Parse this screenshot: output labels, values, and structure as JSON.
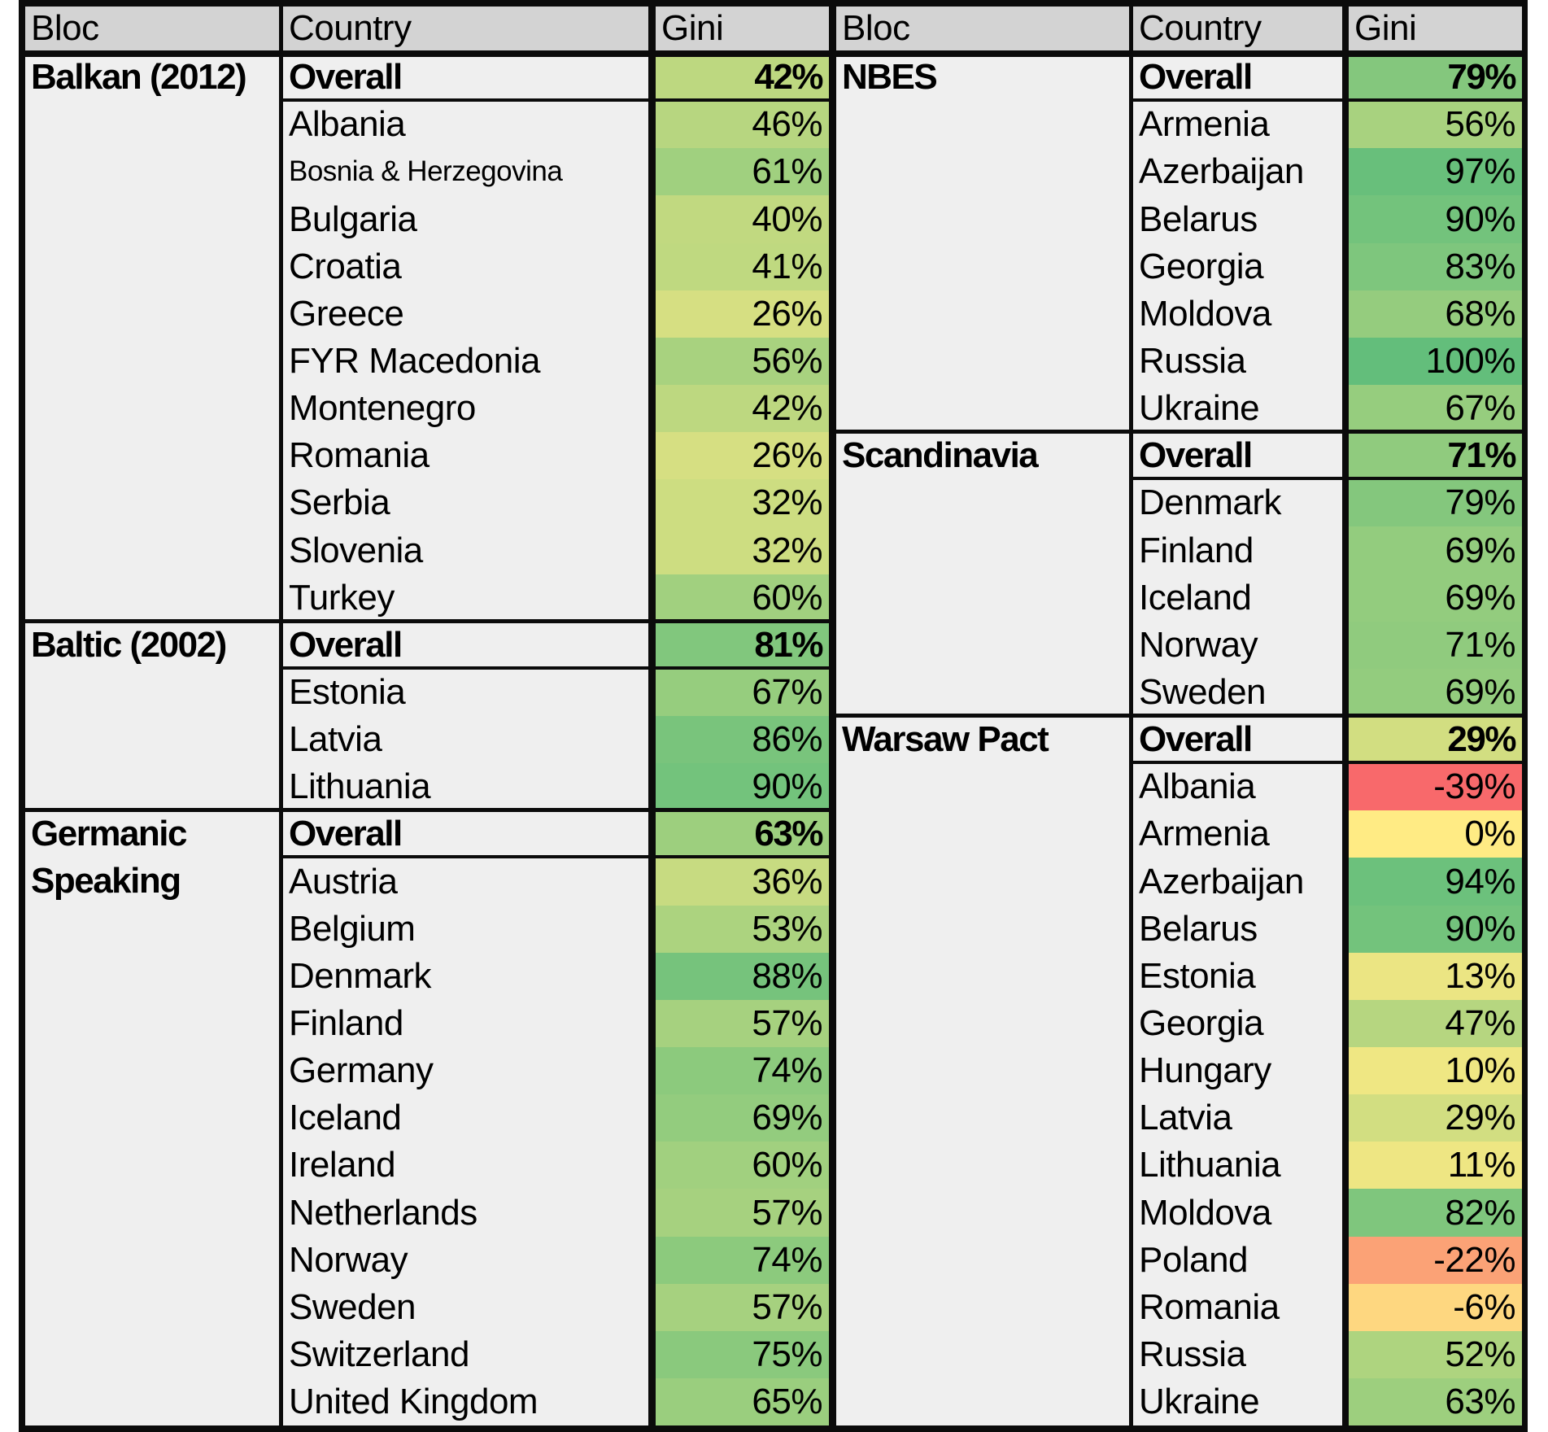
{
  "chart_data": {
    "type": "table",
    "columns": [
      "Bloc",
      "Country",
      "Gini"
    ],
    "value_format": "percent",
    "legend": "conditional color scale on Gini column",
    "color_scale": {
      "kind": "3-color-scale",
      "min": {
        "value": -39,
        "color": "#F8696B"
      },
      "mid": {
        "value": 0,
        "color": "#FFEB84"
      },
      "max": {
        "value": 100,
        "color": "#63BE7B"
      }
    },
    "tables": [
      {
        "blocs": [
          {
            "bloc": "Balkan (2012)",
            "rows": [
              {
                "country": "Overall",
                "gini": 42,
                "display": "42%",
                "bold": true
              },
              {
                "country": "Albania",
                "gini": 46,
                "display": "46%"
              },
              {
                "country": "Bosnia & Herzegovina",
                "gini": 61,
                "display": "61%",
                "small": true
              },
              {
                "country": "Bulgaria",
                "gini": 40,
                "display": "40%"
              },
              {
                "country": "Croatia",
                "gini": 41,
                "display": "41%"
              },
              {
                "country": "Greece",
                "gini": 26,
                "display": "26%"
              },
              {
                "country": "FYR Macedonia",
                "gini": 56,
                "display": "56%"
              },
              {
                "country": "Montenegro",
                "gini": 42,
                "display": "42%"
              },
              {
                "country": "Romania",
                "gini": 26,
                "display": "26%"
              },
              {
                "country": "Serbia",
                "gini": 32,
                "display": "32%"
              },
              {
                "country": "Slovenia",
                "gini": 32,
                "display": "32%"
              },
              {
                "country": "Turkey",
                "gini": 60,
                "display": "60%"
              }
            ]
          },
          {
            "bloc": "Baltic (2002)",
            "rows": [
              {
                "country": "Overall",
                "gini": 81,
                "display": "81%",
                "bold": true
              },
              {
                "country": "Estonia",
                "gini": 67,
                "display": "67%"
              },
              {
                "country": "Latvia",
                "gini": 86,
                "display": "86%"
              },
              {
                "country": "Lithuania",
                "gini": 90,
                "display": "90%"
              }
            ]
          },
          {
            "bloc": "Germanic Speaking",
            "rows": [
              {
                "country": "Overall",
                "gini": 63,
                "display": "63%",
                "bold": true
              },
              {
                "country": "Austria",
                "gini": 36,
                "display": "36%"
              },
              {
                "country": "Belgium",
                "gini": 53,
                "display": "53%"
              },
              {
                "country": "Denmark",
                "gini": 88,
                "display": "88%"
              },
              {
                "country": "Finland",
                "gini": 57,
                "display": "57%"
              },
              {
                "country": "Germany",
                "gini": 74,
                "display": "74%"
              },
              {
                "country": "Iceland",
                "gini": 69,
                "display": "69%"
              },
              {
                "country": "Ireland",
                "gini": 60,
                "display": "60%"
              },
              {
                "country": "Netherlands",
                "gini": 57,
                "display": "57%"
              },
              {
                "country": "Norway",
                "gini": 74,
                "display": "74%"
              },
              {
                "country": "Sweden",
                "gini": 57,
                "display": "57%"
              },
              {
                "country": "Switzerland",
                "gini": 75,
                "display": "75%"
              },
              {
                "country": "United Kingdom",
                "gini": 65,
                "display": "65%"
              }
            ]
          }
        ]
      },
      {
        "blocs": [
          {
            "bloc": "NBES",
            "rows": [
              {
                "country": "Overall",
                "gini": 79,
                "display": "79%",
                "bold": true
              },
              {
                "country": "Armenia",
                "gini": 56,
                "display": "56%"
              },
              {
                "country": "Azerbaijan",
                "gini": 97,
                "display": "97%"
              },
              {
                "country": "Belarus",
                "gini": 90,
                "display": "90%"
              },
              {
                "country": "Georgia",
                "gini": 83,
                "display": "83%"
              },
              {
                "country": "Moldova",
                "gini": 68,
                "display": "68%"
              },
              {
                "country": "Russia",
                "gini": 100,
                "display": "100%"
              },
              {
                "country": "Ukraine",
                "gini": 67,
                "display": "67%"
              }
            ]
          },
          {
            "bloc": "Scandinavia",
            "rows": [
              {
                "country": "Overall",
                "gini": 71,
                "display": "71%",
                "bold": true
              },
              {
                "country": "Denmark",
                "gini": 79,
                "display": "79%"
              },
              {
                "country": "Finland",
                "gini": 69,
                "display": "69%"
              },
              {
                "country": "Iceland",
                "gini": 69,
                "display": "69%"
              },
              {
                "country": "Norway",
                "gini": 71,
                "display": "71%"
              },
              {
                "country": "Sweden",
                "gini": 69,
                "display": "69%"
              }
            ]
          },
          {
            "bloc": "Warsaw Pact",
            "rows": [
              {
                "country": "Overall",
                "gini": 29,
                "display": "29%",
                "bold": true
              },
              {
                "country": "Albania",
                "gini": -39,
                "display": "-39%"
              },
              {
                "country": "Armenia",
                "gini": 0,
                "display": "0%"
              },
              {
                "country": "Azerbaijan",
                "gini": 94,
                "display": "94%"
              },
              {
                "country": "Belarus",
                "gini": 90,
                "display": "90%"
              },
              {
                "country": "Estonia",
                "gini": 13,
                "display": "13%"
              },
              {
                "country": "Georgia",
                "gini": 47,
                "display": "47%"
              },
              {
                "country": "Hungary",
                "gini": 10,
                "display": "10%"
              },
              {
                "country": "Latvia",
                "gini": 29,
                "display": "29%"
              },
              {
                "country": "Lithuania",
                "gini": 11,
                "display": "11%"
              },
              {
                "country": "Moldova",
                "gini": 82,
                "display": "82%"
              },
              {
                "country": "Poland",
                "gini": -22,
                "display": "-22%"
              },
              {
                "country": "Romania",
                "gini": -6,
                "display": "-6%"
              },
              {
                "country": "Russia",
                "gini": 52,
                "display": "52%"
              },
              {
                "country": "Ukraine",
                "gini": 63,
                "display": "63%"
              }
            ]
          }
        ]
      }
    ]
  },
  "colors": {
    "page_background": "#FFFFFF",
    "header_fill": "#D3D3D3",
    "body_fill": "#EFEFEF",
    "border": "#0B0B0B",
    "text": "#000000"
  }
}
